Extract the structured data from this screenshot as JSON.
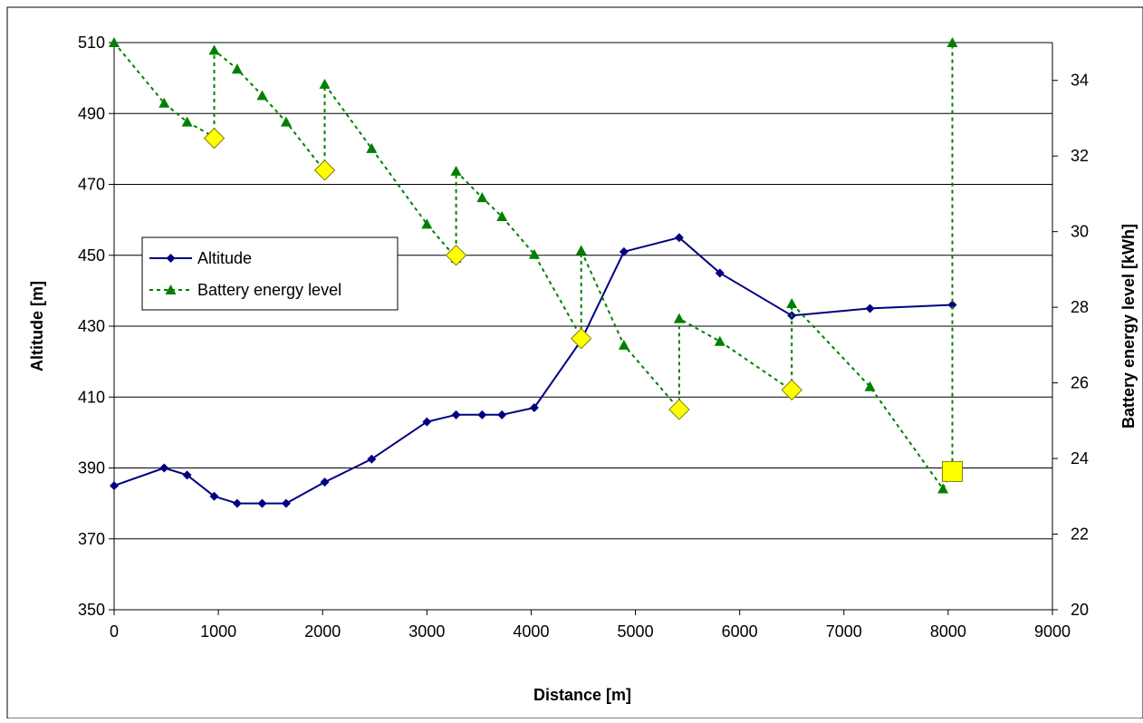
{
  "chart_data": {
    "type": "line",
    "title": "",
    "xlabel": "Distance [m]",
    "ylabel_left": "Altitude [m]",
    "ylabel_right": "Battery energy level [kWh]",
    "xlim": [
      0,
      9000
    ],
    "ylim_left": [
      350,
      510
    ],
    "ylim_right": [
      20,
      35
    ],
    "x_ticks": [
      0,
      1000,
      2000,
      3000,
      4000,
      5000,
      6000,
      7000,
      8000,
      9000
    ],
    "y_left_ticks": [
      350,
      370,
      390,
      410,
      430,
      450,
      470,
      490,
      510
    ],
    "y_right_ticks": [
      20,
      22,
      24,
      26,
      28,
      30,
      32,
      34
    ],
    "grid": "horizontal",
    "legend_position": "center-left",
    "series": [
      {
        "name": "Altitude",
        "axis": "left",
        "color": "#000080",
        "marker": "diamond",
        "line_style": "solid",
        "points": [
          [
            0,
            385
          ],
          [
            480,
            390
          ],
          [
            700,
            388
          ],
          [
            960,
            382
          ],
          [
            1180,
            380
          ],
          [
            1420,
            380
          ],
          [
            1650,
            380
          ],
          [
            2020,
            386
          ],
          [
            2470,
            392.5
          ],
          [
            3000,
            403
          ],
          [
            3280,
            405
          ],
          [
            3530,
            405
          ],
          [
            3720,
            405
          ],
          [
            4030,
            407
          ],
          [
            4480,
            426
          ],
          [
            4890,
            451
          ],
          [
            5420,
            455
          ],
          [
            5810,
            445
          ],
          [
            6500,
            433
          ],
          [
            7250,
            435
          ],
          [
            8040,
            436
          ]
        ]
      },
      {
        "name": "Battery energy level",
        "axis": "right",
        "color": "#008000",
        "marker": "triangle",
        "line_style": "dashed",
        "points": [
          [
            0,
            35.0
          ],
          [
            480,
            33.4
          ],
          [
            700,
            32.9
          ],
          [
            960,
            32.5
          ],
          [
            960,
            34.8
          ],
          [
            1180,
            34.3
          ],
          [
            1420,
            33.6
          ],
          [
            1650,
            32.9
          ],
          [
            2020,
            31.6
          ],
          [
            2020,
            33.9
          ],
          [
            2470,
            32.2
          ],
          [
            3000,
            30.2
          ],
          [
            3280,
            29.3
          ],
          [
            3280,
            31.6
          ],
          [
            3530,
            30.9
          ],
          [
            3720,
            30.4
          ],
          [
            4030,
            29.4
          ],
          [
            4480,
            27.2
          ],
          [
            4480,
            29.5
          ],
          [
            4890,
            27.0
          ],
          [
            5420,
            25.3
          ],
          [
            5420,
            27.7
          ],
          [
            5810,
            27.1
          ],
          [
            6500,
            25.8
          ],
          [
            6500,
            28.1
          ],
          [
            7250,
            25.9
          ],
          [
            7950,
            23.2
          ],
          [
            8040,
            23.7
          ],
          [
            8040,
            35.0
          ]
        ]
      },
      {
        "name": "",
        "axis": "left",
        "color": "#ffff00",
        "marker": "diamond-large",
        "line_style": "none",
        "points": [
          [
            960,
            483
          ],
          [
            2020,
            474
          ],
          [
            3280,
            450
          ],
          [
            4480,
            426.5
          ],
          [
            5420,
            406.5
          ],
          [
            6500,
            412
          ]
        ]
      },
      {
        "name": "",
        "axis": "left",
        "color": "#ffff00",
        "marker": "square-large",
        "line_style": "none",
        "points": [
          [
            8040,
            389
          ]
        ]
      }
    ]
  }
}
